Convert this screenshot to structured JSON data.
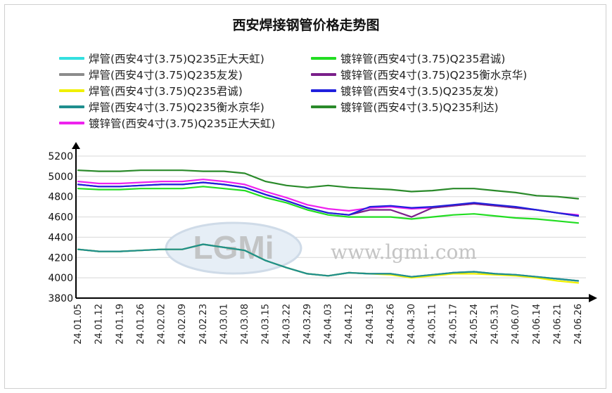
{
  "chart_data": {
    "type": "line",
    "title": "西安焊接钢管价格走势图",
    "watermark": "www.lgmi.com",
    "logo_text": "LGMi",
    "ylim": [
      3800,
      5200
    ],
    "yticks": [
      3800,
      4000,
      4200,
      4400,
      4600,
      4800,
      5000,
      5200
    ],
    "grid": "horizontal",
    "legend_position": "top",
    "categories": [
      "24.01.05",
      "24.01.12",
      "24.01.19",
      "24.01.26",
      "24.02.02",
      "24.02.09",
      "24.02.23",
      "24.03.01",
      "24.03.08",
      "24.03.15",
      "24.03.22",
      "24.03.29",
      "24.04.03",
      "24.04.12",
      "24.04.19",
      "24.04.26",
      "24.04.30",
      "24.05.11",
      "24.05.17",
      "24.05.24",
      "24.05.31",
      "24.06.07",
      "24.06.14",
      "24.06.21",
      "24.06.26"
    ],
    "series": [
      {
        "name": "焊管(西安4寸(3.75)Q235正大天虹)",
        "color": "#33e0e0",
        "values": [
          4280,
          4260,
          4260,
          4270,
          4280,
          4280,
          4330,
          4300,
          4270,
          4170,
          4100,
          4040,
          4020,
          4050,
          4040,
          4040,
          4010,
          4030,
          4050,
          4060,
          4040,
          4030,
          4010,
          3990,
          3970
        ]
      },
      {
        "name": "焊管(西安4寸(3.75)Q235友发)",
        "color": "#8c8c8c",
        "values": [
          4280,
          4260,
          4260,
          4270,
          4280,
          4280,
          4330,
          4300,
          4270,
          4170,
          4100,
          4040,
          4020,
          4050,
          4040,
          4040,
          4010,
          4030,
          4050,
          4060,
          4040,
          4030,
          4010,
          3990,
          3970
        ]
      },
      {
        "name": "焊管(西安4寸(3.75)Q235君诚)",
        "color": "#f0f000",
        "values": [
          4280,
          4260,
          4260,
          4270,
          4280,
          4280,
          4330,
          4300,
          4270,
          4170,
          4100,
          4040,
          4020,
          4050,
          4040,
          4030,
          4000,
          4020,
          4040,
          4040,
          4030,
          4020,
          4000,
          3970,
          3950
        ]
      },
      {
        "name": "焊管(西安4寸(3.75)Q235衡水京华)",
        "color": "#1e8e8e",
        "values": [
          4280,
          4260,
          4260,
          4270,
          4280,
          4280,
          4330,
          4300,
          4270,
          4170,
          4100,
          4040,
          4020,
          4050,
          4040,
          4040,
          4010,
          4030,
          4050,
          4060,
          4040,
          4030,
          4010,
          3990,
          3970
        ]
      },
      {
        "name": "镀锌管(西安4寸(3.75)Q235正大天虹)",
        "color": "#ee22ee",
        "values": [
          4950,
          4930,
          4930,
          4940,
          4950,
          4950,
          4970,
          4950,
          4920,
          4850,
          4790,
          4720,
          4680,
          4660,
          4690,
          4700,
          4680,
          4690,
          4710,
          4730,
          4710,
          4690,
          4670,
          4640,
          4620
        ]
      },
      {
        "name": "镀锌管(西安4寸(3.75)Q235君诚)",
        "color": "#22dd22",
        "values": [
          4880,
          4870,
          4870,
          4880,
          4880,
          4880,
          4900,
          4880,
          4860,
          4790,
          4740,
          4670,
          4620,
          4600,
          4600,
          4600,
          4580,
          4600,
          4620,
          4630,
          4610,
          4590,
          4580,
          4560,
          4540
        ]
      },
      {
        "name": "镀锌管(西安4寸(3.75)Q235衡水京华)",
        "color": "#7a1f8a",
        "values": [
          4920,
          4900,
          4900,
          4910,
          4920,
          4920,
          4940,
          4920,
          4890,
          4820,
          4760,
          4690,
          4640,
          4620,
          4670,
          4670,
          4600,
          4690,
          4710,
          4730,
          4710,
          4690,
          4670,
          4640,
          4610
        ]
      },
      {
        "name": "镀锌管(西安4寸(3.5)Q235友发)",
        "color": "#2020dd",
        "values": [
          4920,
          4900,
          4900,
          4910,
          4920,
          4920,
          4940,
          4920,
          4890,
          4820,
          4760,
          4690,
          4640,
          4620,
          4700,
          4710,
          4690,
          4700,
          4720,
          4740,
          4720,
          4700,
          4670,
          4640,
          4610
        ]
      },
      {
        "name": "镀锌管(西安4寸(3.5)Q235利达)",
        "color": "#2a8a2a",
        "values": [
          5060,
          5050,
          5050,
          5060,
          5060,
          5060,
          5050,
          5050,
          5030,
          4950,
          4910,
          4890,
          4910,
          4890,
          4880,
          4870,
          4850,
          4860,
          4880,
          4880,
          4860,
          4840,
          4810,
          4800,
          4780
        ]
      }
    ]
  }
}
